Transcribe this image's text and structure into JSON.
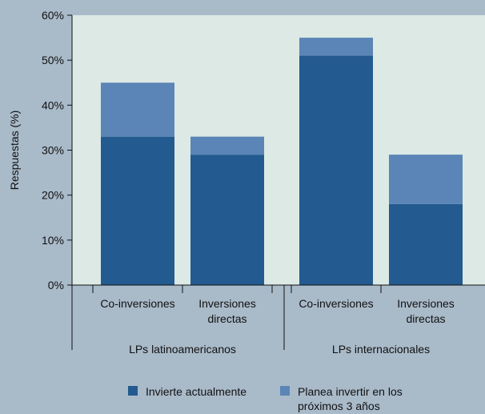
{
  "chart_data": {
    "type": "bar",
    "stacked": true,
    "ylabel": "Respuestas (%)",
    "ylim": [
      0,
      60
    ],
    "yticks": [
      0,
      10,
      20,
      30,
      40,
      50,
      60
    ],
    "ytick_labels": [
      "0%",
      "10%",
      "20%",
      "30%",
      "40%",
      "50%",
      "60%"
    ],
    "groups": [
      {
        "label": "LPs latinoamericanos",
        "categories": [
          [
            "Co-inversiones"
          ],
          [
            "Inversiones",
            "directas"
          ]
        ]
      },
      {
        "label": "LPs internacionales",
        "categories": [
          [
            "Co-inversiones"
          ],
          [
            "Inversiones",
            "directas"
          ]
        ]
      }
    ],
    "series": [
      {
        "name": "Invierte actualmente",
        "color": "#235a8f",
        "values": [
          33,
          29,
          51,
          18
        ]
      },
      {
        "name": "Planea invertir en los próximos 3 años",
        "legend_lines": [
          "Planea invertir en los",
          "próximos 3 años"
        ],
        "color": "#5b85b6",
        "values": [
          12,
          4,
          4,
          11
        ]
      }
    ],
    "plot_background": "#dce9e5",
    "legend_position": "bottom-center"
  }
}
